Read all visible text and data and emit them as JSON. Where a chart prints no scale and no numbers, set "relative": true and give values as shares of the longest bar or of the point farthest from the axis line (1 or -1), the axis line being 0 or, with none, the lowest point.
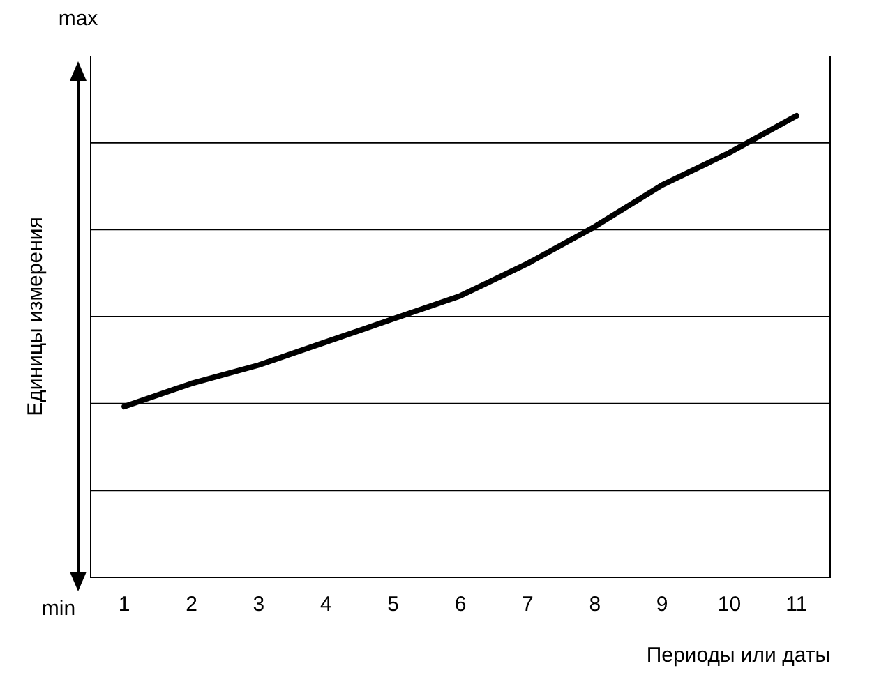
{
  "chart_data": {
    "type": "line",
    "relative": true,
    "xlabel": "Периоды или даты",
    "ylabel": "Единицы измерения",
    "annotations": [
      "max",
      "min"
    ],
    "categories": [
      "1",
      "2",
      "3",
      "4",
      "5",
      "6",
      "7",
      "8",
      "9",
      "10",
      "11"
    ],
    "series": [
      {
        "color": "#000000",
        "values": [
          0.37,
          0.42,
          0.46,
          0.51,
          0.56,
          0.61,
          0.68,
          0.76,
          0.85,
          0.92,
          1
        ]
      }
    ],
    "grid": "y",
    "legend": false,
    "marker": "none",
    "line_style": "solid"
  }
}
